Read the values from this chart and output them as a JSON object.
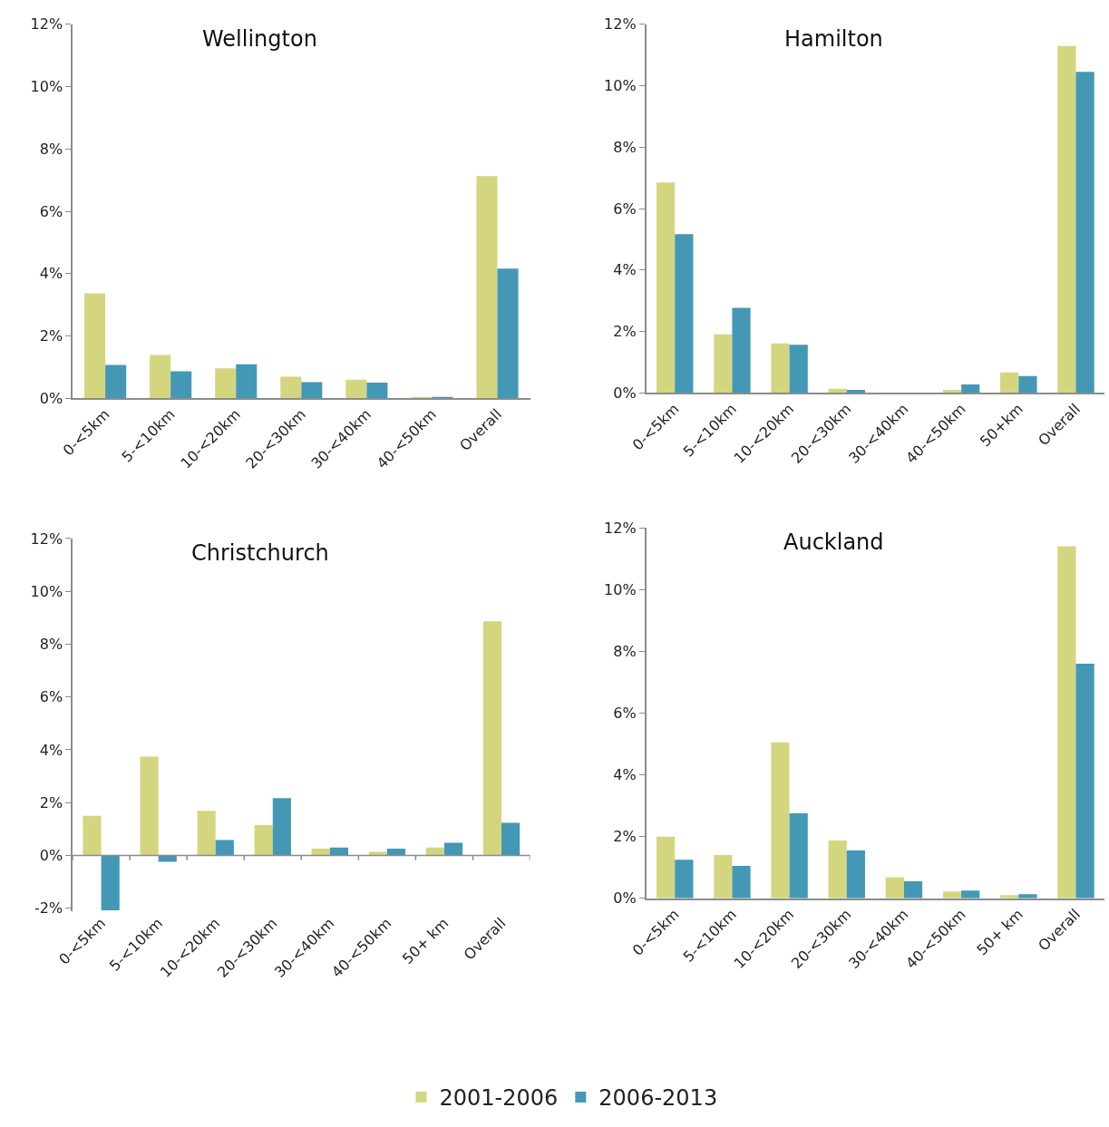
{
  "chart_data": [
    {
      "type": "bar",
      "title": "Wellington",
      "categories": [
        "0-<5km",
        "5-<10km",
        "10-<20km",
        "20-<30km",
        "30-<40km",
        "40-<50km",
        "Overall"
      ],
      "series": [
        {
          "name": "2001-2006",
          "color": "#d4d67f",
          "values": [
            3.37,
            1.39,
            0.96,
            0.69,
            0.6,
            0.02,
            7.13
          ]
        },
        {
          "name": "2006-2013",
          "color": "#4498b5",
          "values": [
            1.07,
            0.87,
            1.09,
            0.52,
            0.5,
            0.02,
            4.16
          ]
        }
      ],
      "ylim": [
        0,
        12
      ],
      "yticks": [
        {
          "value": 0,
          "label": "0%"
        },
        {
          "value": 2,
          "label": "2%"
        },
        {
          "value": 4,
          "label": "4%"
        },
        {
          "value": 6,
          "label": "6%"
        },
        {
          "value": 8,
          "label": "8%"
        },
        {
          "value": 10,
          "label": "10%"
        },
        {
          "value": 12,
          "label": "12%"
        }
      ],
      "legend": "bottom"
    },
    {
      "type": "bar",
      "title": "Hamilton",
      "categories": [
        "0-<5km",
        "5-<10km",
        "10-<20km",
        "20-<30km",
        "30-<40km",
        "40-<50km",
        "50+km",
        "Overall"
      ],
      "series": [
        {
          "name": "2001-2006",
          "color": "#d4d67f",
          "values": [
            6.85,
            1.91,
            1.61,
            0.14,
            0,
            0.1,
            0.67,
            11.29
          ]
        },
        {
          "name": "2006-2013",
          "color": "#4498b5",
          "values": [
            5.17,
            2.77,
            1.57,
            0.1,
            0,
            0.28,
            0.55,
            10.45
          ]
        }
      ],
      "ylim": [
        0,
        12
      ],
      "yticks": [
        {
          "value": 0,
          "label": "0%"
        },
        {
          "value": 2,
          "label": "2%"
        },
        {
          "value": 4,
          "label": "4%"
        },
        {
          "value": 6,
          "label": "6%"
        },
        {
          "value": 8,
          "label": "8%"
        },
        {
          "value": 10,
          "label": "10%"
        },
        {
          "value": 12,
          "label": "12%"
        }
      ]
    },
    {
      "type": "bar",
      "title": "Christchurch",
      "categories": [
        "0-<5km",
        "5-<10km",
        "10-<20km",
        "20-<30km",
        "30-<40km",
        "40-<50km",
        "50+ km",
        "Overall"
      ],
      "series": [
        {
          "name": "2001-2006",
          "color": "#d4d67f",
          "values": [
            1.5,
            3.74,
            1.69,
            1.15,
            0.25,
            0.13,
            0.3,
            8.86
          ]
        },
        {
          "name": "2006-2013",
          "color": "#4498b5",
          "values": [
            -2.08,
            -0.24,
            0.58,
            2.17,
            0.3,
            0.25,
            0.48,
            1.23
          ]
        }
      ],
      "ylim": [
        -2.1,
        12
      ],
      "yticks": [
        {
          "value": -2,
          "label": "-2%"
        },
        {
          "value": 0,
          "label": "0%"
        },
        {
          "value": 2,
          "label": "2%"
        },
        {
          "value": 4,
          "label": "4%"
        },
        {
          "value": 6,
          "label": "6%"
        },
        {
          "value": 8,
          "label": "8%"
        },
        {
          "value": 10,
          "label": "10%"
        },
        {
          "value": 12,
          "label": "12%"
        }
      ]
    },
    {
      "type": "bar",
      "title": "Auckland",
      "categories": [
        "0-<5km",
        "5-<10km",
        "10-<20km",
        "20-<30km",
        "30-<40km",
        "40-<50km",
        "50+ km",
        "Overall"
      ],
      "series": [
        {
          "name": "2001-2006",
          "color": "#d4d67f",
          "values": [
            2.0,
            1.4,
            5.05,
            1.87,
            0.68,
            0.22,
            0.1,
            11.4
          ]
        },
        {
          "name": "2006-2013",
          "color": "#4498b5",
          "values": [
            1.25,
            1.05,
            2.75,
            1.55,
            0.55,
            0.25,
            0.13,
            7.6
          ]
        }
      ],
      "ylim": [
        0,
        12
      ],
      "yticks": [
        {
          "value": 0,
          "label": "0%"
        },
        {
          "value": 2,
          "label": "2%"
        },
        {
          "value": 4,
          "label": "4%"
        },
        {
          "value": 6,
          "label": "6%"
        },
        {
          "value": 8,
          "label": "8%"
        },
        {
          "value": 10,
          "label": "10%"
        },
        {
          "value": 12,
          "label": "12%"
        }
      ]
    }
  ]
}
